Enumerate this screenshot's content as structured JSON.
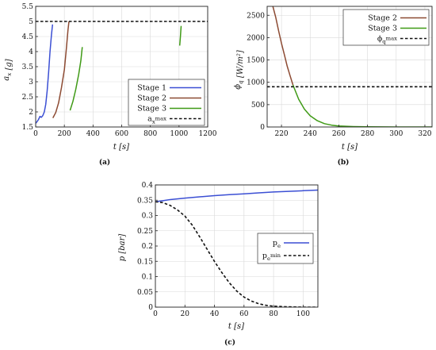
{
  "chart_data": [
    {
      "id": "a",
      "type": "line",
      "caption": "(a)",
      "xlabel": "t [s]",
      "ylabel": "a_x [g]",
      "xlim": [
        0,
        1200
      ],
      "ylim": [
        1.5,
        5.5
      ],
      "xticks": [
        0,
        200,
        400,
        600,
        800,
        1000,
        1200
      ],
      "yticks": [
        1.5,
        2,
        2.5,
        3,
        3.5,
        4,
        4.5,
        5,
        5.5
      ],
      "ytick_labels": [
        "1.5",
        "2",
        "2.5",
        "3",
        "3.5",
        "4",
        "4.5",
        "5",
        "5.5"
      ],
      "grid": true,
      "legend_position": "lower-right",
      "series": [
        {
          "name": "Stage 1",
          "color": "#3b4fd4",
          "style": "solid",
          "segments": [
            [
              [
                0,
                1.62
              ],
              [
                10,
                1.68
              ],
              [
                20,
                1.75
              ],
              [
                30,
                1.85
              ],
              [
                40,
                1.82
              ],
              [
                50,
                1.88
              ],
              [
                60,
                2.0
              ],
              [
                70,
                2.25
              ],
              [
                80,
                2.7
              ],
              [
                90,
                3.3
              ],
              [
                100,
                4.0
              ],
              [
                110,
                4.55
              ],
              [
                118,
                4.9
              ]
            ]
          ]
        },
        {
          "name": "Stage 2",
          "color": "#8c4a32",
          "style": "solid",
          "segments": [
            [
              [
                120,
                1.8
              ],
              [
                140,
                1.98
              ],
              [
                160,
                2.3
              ],
              [
                180,
                2.8
              ],
              [
                200,
                3.4
              ],
              [
                215,
                4.15
              ],
              [
                225,
                4.7
              ],
              [
                232,
                5.0
              ]
            ]
          ]
        },
        {
          "name": "Stage 3",
          "color": "#3f9a16",
          "style": "solid",
          "segments": [
            [
              [
                240,
                2.05
              ],
              [
                260,
                2.35
              ],
              [
                280,
                2.75
              ],
              [
                300,
                3.25
              ],
              [
                315,
                3.7
              ],
              [
                325,
                4.15
              ]
            ],
            [
              [
                1005,
                4.2
              ],
              [
                1010,
                4.5
              ],
              [
                1015,
                4.85
              ]
            ]
          ]
        },
        {
          "name": "a_x^max",
          "color": "#111111",
          "style": "dashed",
          "segments": [
            [
              [
                0,
                5.0
              ],
              [
                1200,
                5.0
              ]
            ]
          ]
        }
      ]
    },
    {
      "id": "b",
      "type": "line",
      "caption": "(b)",
      "xlabel": "t [s]",
      "ylabel": "ϕ_q [W/m²]",
      "xlim": [
        210,
        325
      ],
      "ylim": [
        0,
        2700
      ],
      "xticks": [
        220,
        240,
        260,
        280,
        300,
        320
      ],
      "yticks": [
        0,
        500,
        1000,
        1500,
        2000,
        2500
      ],
      "ytick_labels": [
        "0",
        "500",
        "1000",
        "1500",
        "2000",
        "2500"
      ],
      "grid": true,
      "legend_position": "top-right",
      "series": [
        {
          "name": "Stage 2",
          "color": "#8c4a32",
          "style": "solid",
          "segments": [
            [
              [
                214,
                2700
              ],
              [
                216,
                2450
              ],
              [
                218,
                2150
              ],
              [
                220,
                1870
              ],
              [
                222,
                1620
              ],
              [
                224,
                1360
              ],
              [
                226,
                1150
              ],
              [
                228,
                940
              ]
            ]
          ]
        },
        {
          "name": "Stage 3",
          "color": "#3f9a16",
          "style": "solid",
          "segments": [
            [
              [
                228,
                940
              ],
              [
                232,
                620
              ],
              [
                236,
                400
              ],
              [
                240,
                250
              ],
              [
                245,
                140
              ],
              [
                250,
                75
              ],
              [
                255,
                40
              ],
              [
                260,
                22
              ],
              [
                270,
                8
              ],
              [
                280,
                3
              ],
              [
                300,
                0
              ],
              [
                325,
                0
              ]
            ]
          ]
        },
        {
          "name": "ϕ_q^max",
          "color": "#111111",
          "style": "dashed",
          "segments": [
            [
              [
                210,
                900
              ],
              [
                325,
                900
              ]
            ]
          ]
        }
      ]
    },
    {
      "id": "c",
      "type": "line",
      "caption": "(c)",
      "xlabel": "t [s]",
      "ylabel": "p [bar]",
      "xlim": [
        0,
        110
      ],
      "ylim": [
        0,
        0.4
      ],
      "xticks": [
        0,
        20,
        40,
        60,
        80,
        100
      ],
      "yticks": [
        0,
        0.05,
        0.1,
        0.15,
        0.2,
        0.25,
        0.3,
        0.35,
        0.4
      ],
      "ytick_labels": [
        "0",
        "0.05",
        "0.1",
        "0.15",
        "0.2",
        "0.25",
        "0.3",
        "0.35",
        "0.4"
      ],
      "grid": true,
      "legend_position": "right",
      "series": [
        {
          "name": "p_e",
          "color": "#3b4fd4",
          "style": "solid",
          "segments": [
            [
              [
                0,
                0.345
              ],
              [
                10,
                0.352
              ],
              [
                20,
                0.357
              ],
              [
                30,
                0.361
              ],
              [
                40,
                0.365
              ],
              [
                50,
                0.368
              ],
              [
                60,
                0.371
              ],
              [
                70,
                0.374
              ],
              [
                80,
                0.377
              ],
              [
                90,
                0.379
              ],
              [
                100,
                0.381
              ],
              [
                110,
                0.383
              ]
            ]
          ]
        },
        {
          "name": "p_e^min",
          "color": "#111111",
          "style": "dashed",
          "segments": [
            [
              [
                0,
                0.345
              ],
              [
                5,
                0.342
              ],
              [
                10,
                0.333
              ],
              [
                15,
                0.318
              ],
              [
                20,
                0.298
              ],
              [
                25,
                0.268
              ],
              [
                30,
                0.23
              ],
              [
                35,
                0.19
              ],
              [
                40,
                0.15
              ],
              [
                45,
                0.113
              ],
              [
                50,
                0.08
              ],
              [
                55,
                0.053
              ],
              [
                60,
                0.033
              ],
              [
                65,
                0.02
              ],
              [
                70,
                0.011
              ],
              [
                75,
                0.006
              ],
              [
                80,
                0.003
              ],
              [
                90,
                0.001
              ],
              [
                100,
                0
              ],
              [
                110,
                0
              ]
            ]
          ]
        }
      ]
    }
  ]
}
